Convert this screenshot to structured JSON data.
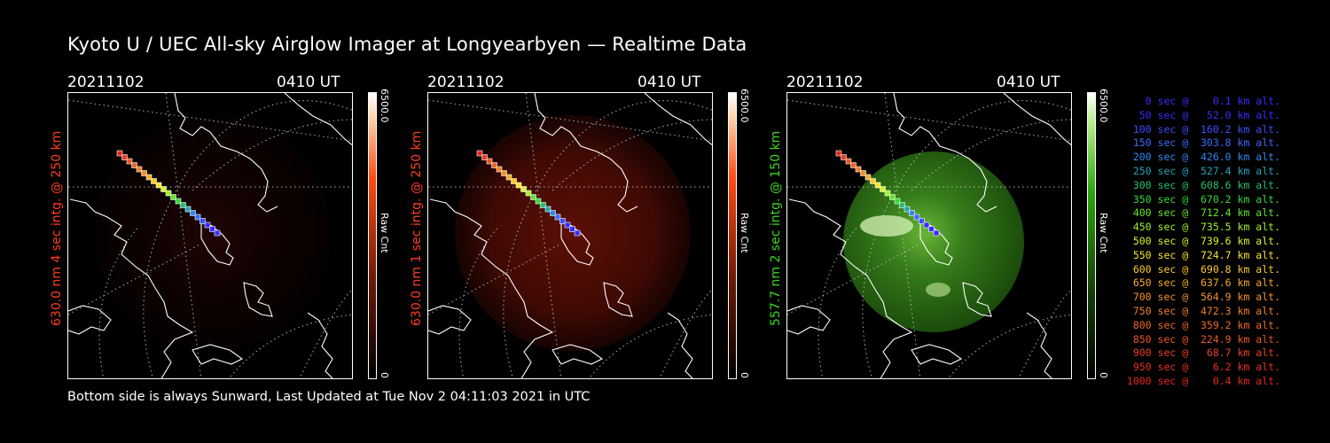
{
  "title": "Kyoto U / UEC All-sky Airglow Imager at Longyearbyen — Realtime Data",
  "footer": "Bottom side is always Sunward, Last Updated at Tue Nov  2 04:11:03 2021 in UTC",
  "panels": [
    {
      "date": "20211102",
      "time": "0410 UT",
      "side_label": "630.0 nm  4 sec intg. @ 250 km",
      "label_color": "#ff3b1f",
      "glow": "faint-red"
    },
    {
      "date": "20211102",
      "time": "0410 UT",
      "side_label": "630.0 nm  1 sec intg. @ 250 km",
      "label_color": "#ff3b1f",
      "glow": "red"
    },
    {
      "date": "20211102",
      "time": "0410 UT",
      "side_label": "557.7 nm  2 sec intg. @ 150 km",
      "label_color": "#38d91c",
      "glow": "green"
    }
  ],
  "colorbars": [
    {
      "max": "6500.0",
      "min": "0",
      "unit": "Raw Cnt",
      "color": "#ff4a12"
    },
    {
      "max": "6500.0",
      "min": "0",
      "unit": "Raw Cnt",
      "color": "#ff4a12"
    },
    {
      "max": "6500.0",
      "min": "0",
      "unit": "Raw Cnt",
      "color": "#2aa50c"
    }
  ],
  "legend": [
    {
      "text": "   0 sec @    0.1 km alt.",
      "color": "#3b2cff"
    },
    {
      "text": "  50 sec @   52.0 km alt.",
      "color": "#3b2cff"
    },
    {
      "text": " 100 sec @  160.2 km alt.",
      "color": "#3a50ff"
    },
    {
      "text": " 150 sec @  303.8 km alt.",
      "color": "#3a6cff"
    },
    {
      "text": " 200 sec @  426.0 km alt.",
      "color": "#2f88ef"
    },
    {
      "text": " 250 sec @  527.4 km alt.",
      "color": "#26a3b8"
    },
    {
      "text": " 300 sec @  608.6 km alt.",
      "color": "#24c06d"
    },
    {
      "text": " 350 sec @  670.2 km alt.",
      "color": "#33d93b"
    },
    {
      "text": " 400 sec @  712.4 km alt.",
      "color": "#62e52a"
    },
    {
      "text": " 450 sec @  735.5 km alt.",
      "color": "#9ff02a"
    },
    {
      "text": " 500 sec @  739.6 km alt.",
      "color": "#d7f22c"
    },
    {
      "text": " 550 sec @  724.7 km alt.",
      "color": "#f7e42b"
    },
    {
      "text": " 600 sec @  690.8 km alt.",
      "color": "#fcc92a"
    },
    {
      "text": " 650 sec @  637.6 km alt.",
      "color": "#f7ab2a"
    },
    {
      "text": " 700 sec @  564.9 km alt.",
      "color": "#f59228"
    },
    {
      "text": " 750 sec @  472.3 km alt.",
      "color": "#f27f26"
    },
    {
      "text": " 800 sec @  359.2 km alt.",
      "color": "#ef6a25"
    },
    {
      "text": " 850 sec @  224.9 km alt.",
      "color": "#ec5623"
    },
    {
      "text": " 900 sec @   68.7 km alt.",
      "color": "#e94021"
    },
    {
      "text": " 950 sec @    6.2 km alt.",
      "color": "#e8301f"
    },
    {
      "text": "1000 sec @    0.4 km alt.",
      "color": "#e6261e"
    }
  ]
}
